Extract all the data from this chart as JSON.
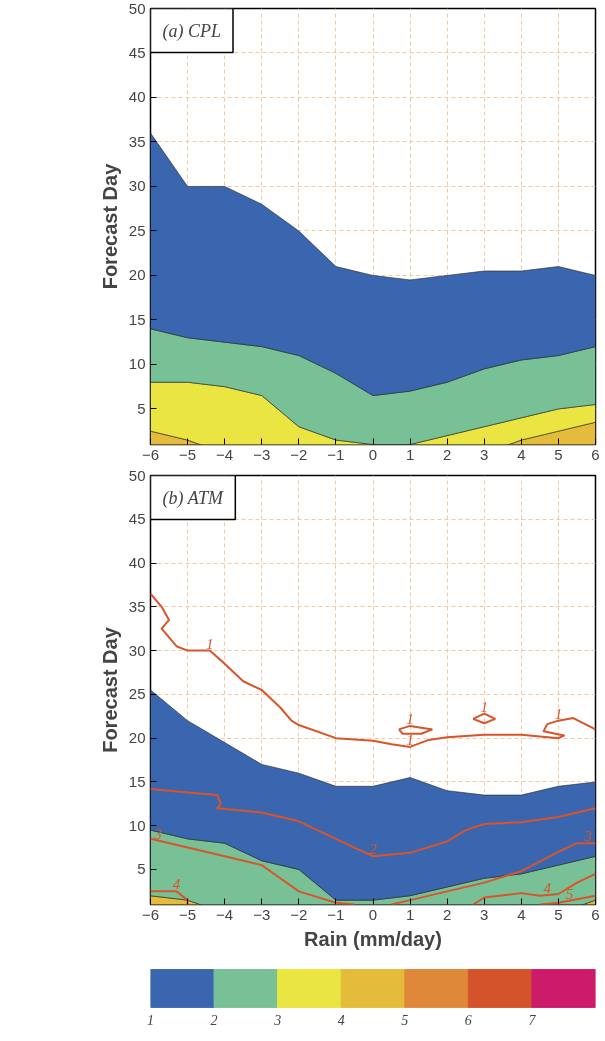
{
  "chart_data": [
    {
      "type": "area",
      "stacked": true,
      "title": "(a) CPL",
      "ylabel": "Forecast Day",
      "x": [
        -6,
        -5,
        -4,
        -3,
        -2,
        -1,
        0,
        1,
        2,
        3,
        4,
        5,
        6
      ],
      "xlim": [
        -6,
        6
      ],
      "xticks": [
        -6,
        -5,
        -4,
        -3,
        -2,
        -1,
        0,
        1,
        2,
        3,
        4,
        5,
        6
      ],
      "ylim": [
        1,
        50
      ],
      "yticks": [
        5,
        10,
        15,
        20,
        25,
        30,
        35,
        40,
        45,
        50
      ],
      "grid": true,
      "series": [
        {
          "color": "#e5bb3c",
          "values": [
            2.5,
            1.5,
            null,
            null,
            null,
            null,
            null,
            null,
            null,
            null,
            1.5,
            2.5,
            3.5
          ]
        },
        {
          "color": "#ebe542",
          "values": [
            5.5,
            6.5,
            7.5,
            6.5,
            3,
            1.5,
            1,
            1,
            2,
            3,
            2.5,
            2.5,
            2
          ]
        },
        {
          "color": "#78c196",
          "values": [
            6,
            5,
            5,
            5.5,
            8,
            7.5,
            5.5,
            6,
            6,
            6.5,
            6.5,
            6,
            6.5
          ]
        },
        {
          "color": "#3a66b0",
          "values": [
            22,
            17,
            17.5,
            16,
            14,
            12,
            13.5,
            12.5,
            12,
            11,
            10,
            10,
            8
          ]
        }
      ]
    },
    {
      "type": "area",
      "stacked": true,
      "title": "(b) ATM",
      "xlabel": "Rain (mm/day)",
      "ylabel": "Forecast Day",
      "x": [
        -6,
        -5,
        -4,
        -3,
        -2,
        -1,
        0,
        1,
        2,
        3,
        4,
        5,
        6
      ],
      "xlim": [
        -6,
        6
      ],
      "xticks": [
        -6,
        -5,
        -4,
        -3,
        -2,
        -1,
        0,
        1,
        2,
        3,
        4,
        5,
        6
      ],
      "ylim": [
        1,
        50
      ],
      "yticks": [
        5,
        10,
        15,
        20,
        25,
        30,
        35,
        40,
        45,
        50
      ],
      "grid": true,
      "series": [
        {
          "color": "#e5bb3c",
          "values": [
            2,
            1.5,
            null,
            null,
            null,
            null,
            null,
            null,
            null,
            null,
            null,
            null,
            1.5
          ]
        },
        {
          "color": "#78c196",
          "values": [
            7.5,
            7,
            8,
            6,
            5,
            1.5,
            1.5,
            2,
            3,
            4,
            4.5,
            5.5,
            5
          ]
        },
        {
          "color": "#3a66b0",
          "values": [
            16,
            13.5,
            11.5,
            11,
            11,
            13,
            13,
            13.5,
            11,
            9.5,
            9,
            9,
            8.5
          ]
        },
        {
          "type": "line",
          "color": "#d9542a",
          "x": [
            -6,
            -5.7,
            -5.5,
            -5.7,
            -5.3,
            -5,
            -4.4,
            -4,
            -3.5,
            -3,
            -2.5,
            -2.2,
            -2,
            -1,
            0,
            0.5,
            1,
            1.5,
            2,
            3,
            4,
            5,
            5.15,
            4.6,
            4.7,
            5,
            5.4,
            6
          ],
          "values": [
            36.5,
            35,
            33.5,
            32.5,
            30.5,
            30,
            30,
            28.5,
            26.5,
            25.5,
            23.5,
            22,
            21.5,
            20,
            19.7,
            19.3,
            19,
            19.8,
            20.1,
            20.4,
            20.4,
            20,
            20.3,
            20.8,
            21.6,
            22,
            22.3,
            21
          ]
        },
        {
          "type": "line",
          "color": "#d9542a",
          "x": [
            -6,
            -5,
            -4.2,
            -4.1,
            -4.2,
            -3,
            -2,
            -1,
            0,
            1,
            2,
            2.5,
            3,
            4,
            5,
            6
          ],
          "values": [
            14.2,
            13.8,
            13.5,
            12.5,
            12,
            11.5,
            10.5,
            8.5,
            6.5,
            6.9,
            8.2,
            9.5,
            10.2,
            10.4,
            11,
            12
          ]
        },
        {
          "type": "line",
          "color": "#d9542a",
          "x": [
            -6,
            -5,
            -4,
            -3,
            -2.5,
            -2,
            -1,
            -0.5
          ],
          "values": [
            8.5,
            7.5,
            6.5,
            5.5,
            4,
            2.5,
            1.2,
            1
          ]
        },
        {
          "type": "line",
          "color": "#d9542a",
          "x": [
            0.5,
            1,
            2,
            3,
            4,
            5,
            5.5,
            6
          ],
          "values": [
            1,
            1.5,
            2.5,
            3.5,
            4.8,
            7,
            8,
            8
          ]
        },
        {
          "type": "line",
          "color": "#d9542a",
          "x": [
            -6,
            -5.3,
            -5,
            -5
          ],
          "values": [
            2.5,
            2.5,
            1.5,
            1
          ]
        },
        {
          "type": "line",
          "color": "#d9542a",
          "x": [
            2.7,
            3,
            4,
            4.5,
            5,
            5.5,
            6
          ],
          "values": [
            1,
            1.8,
            2.3,
            2,
            2.2,
            3.5,
            4.5
          ]
        },
        {
          "type": "line",
          "color": "#d9542a",
          "x": [
            4.5,
            5,
            6
          ],
          "values": [
            1,
            1.2,
            2
          ]
        },
        {
          "type": "line",
          "color": "#d9542a",
          "x": [
            0.7,
            1,
            1.6
          ],
          "values": [
            21,
            21.4,
            21
          ]
        },
        {
          "type": "line",
          "color": "#d9542a",
          "x": [
            0.7,
            0.8,
            1.3,
            1.6
          ],
          "values": [
            21,
            20.5,
            20.5,
            21
          ]
        },
        {
          "type": "line",
          "color": "#d9542a",
          "x": [
            2.7,
            3,
            3.3
          ],
          "values": [
            22.2,
            22.8,
            22.2
          ]
        },
        {
          "type": "line",
          "color": "#d9542a",
          "x": [
            2.7,
            3,
            3.3
          ],
          "values": [
            22.2,
            21.7,
            22.2
          ]
        }
      ],
      "annotations": [
        {
          "text": "1",
          "x": -4.4,
          "y": 30
        },
        {
          "text": "1",
          "x": 1,
          "y": 19
        },
        {
          "text": "1",
          "x": 1,
          "y": 21.4
        },
        {
          "text": "1",
          "x": 3,
          "y": 22.8
        },
        {
          "text": "1",
          "x": 5,
          "y": 22
        },
        {
          "text": "2",
          "x": 0,
          "y": 6.5
        },
        {
          "text": "3",
          "x": -5.8,
          "y": 8.3
        },
        {
          "text": "3",
          "x": 5.8,
          "y": 8
        },
        {
          "text": "4",
          "x": -5.3,
          "y": 2.5
        },
        {
          "text": "4",
          "x": 4.7,
          "y": 2.1
        },
        {
          "text": "5",
          "x": 5.3,
          "y": 1.44
        }
      ]
    },
    {
      "type": "bar",
      "orientation": "horizontal",
      "stacked": true,
      "categories": [
        null
      ],
      "xlim": [
        1,
        8
      ],
      "xticks": [
        1,
        2,
        3,
        4,
        5,
        6,
        7
      ],
      "series": [
        {
          "color": "#3a66b0",
          "values": [
            2
          ]
        },
        {
          "color": "#78c196",
          "values": [
            1
          ]
        },
        {
          "color": "#ebe542",
          "values": [
            1
          ]
        },
        {
          "color": "#e5bb3c",
          "values": [
            1
          ]
        },
        {
          "color": "#e0883a",
          "values": [
            1
          ]
        },
        {
          "color": "#d4532b",
          "values": [
            1
          ]
        },
        {
          "color": "#cc1b6a",
          "values": [
            1
          ]
        }
      ]
    }
  ]
}
